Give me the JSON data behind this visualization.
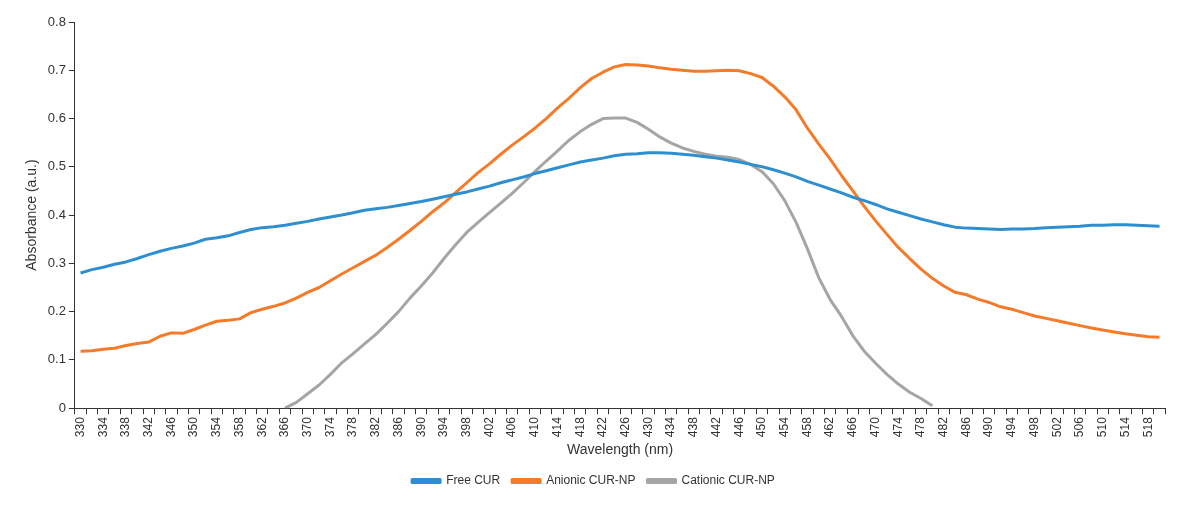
{
  "chart_data": {
    "type": "line",
    "xlabel": "Wavelength (nm)",
    "ylabel": "Absorbance (a.u.)",
    "categories": [
      "330",
      null,
      "334",
      null,
      "338",
      null,
      "342",
      null,
      "346",
      null,
      "350",
      null,
      "354",
      null,
      "358",
      null,
      "362",
      null,
      "366",
      null,
      "370",
      null,
      "374",
      null,
      "378",
      null,
      "382",
      null,
      "386",
      null,
      "390",
      null,
      "394",
      null,
      "398",
      null,
      "402",
      null,
      "406",
      null,
      "410",
      null,
      "414",
      null,
      "418",
      null,
      "422",
      null,
      "426",
      null,
      "430",
      null,
      "434",
      null,
      "438",
      null,
      "442",
      null,
      "446",
      null,
      "450",
      null,
      "454",
      null,
      "458",
      null,
      "462",
      null,
      "466",
      null,
      "470",
      null,
      "474",
      null,
      "478",
      null,
      "482",
      null,
      "486",
      null,
      "490",
      null,
      "494",
      null,
      "498",
      null,
      "502",
      null,
      "506",
      null,
      "510",
      null,
      "514",
      null,
      "518",
      null
    ],
    "series": [
      {
        "name": "Free CUR",
        "color": "#2e8fd0",
        "values": [
          0.28,
          0.287,
          0.292,
          0.298,
          0.303,
          0.31,
          0.318,
          0.325,
          0.331,
          0.336,
          0.342,
          0.35,
          0.353,
          0.357,
          0.364,
          0.37,
          0.374,
          0.376,
          0.379,
          0.383,
          0.387,
          0.392,
          0.396,
          0.4,
          0.405,
          0.41,
          0.413,
          0.416,
          0.42,
          0.424,
          0.428,
          0.433,
          0.438,
          0.443,
          0.448,
          0.454,
          0.46,
          0.467,
          0.473,
          0.479,
          0.486,
          0.492,
          0.498,
          0.504,
          0.51,
          0.514,
          0.518,
          0.523,
          0.526,
          0.527,
          0.529,
          0.529,
          0.528,
          0.526,
          0.524,
          0.521,
          0.518,
          0.514,
          0.51,
          0.505,
          0.5,
          0.494,
          0.487,
          0.479,
          0.47,
          0.462,
          0.454,
          0.446,
          0.437,
          0.43,
          0.422,
          0.413,
          0.406,
          0.399,
          0.392,
          0.386,
          0.38,
          0.375,
          0.373,
          0.372,
          0.371,
          0.37,
          0.371,
          0.371,
          0.372,
          0.374,
          0.375,
          0.376,
          0.377,
          0.379,
          0.379,
          0.38,
          0.38,
          0.379,
          0.378,
          0.377
        ]
      },
      {
        "name": "Anionic CUR-NP",
        "color": "#f47b2a",
        "values": [
          0.118,
          0.119,
          0.122,
          0.124,
          0.13,
          0.134,
          0.137,
          0.149,
          0.156,
          0.155,
          0.163,
          0.172,
          0.18,
          0.182,
          0.185,
          0.198,
          0.205,
          0.211,
          0.218,
          0.228,
          0.24,
          0.25,
          0.264,
          0.278,
          0.291,
          0.304,
          0.317,
          0.333,
          0.35,
          0.368,
          0.387,
          0.407,
          0.425,
          0.446,
          0.467,
          0.488,
          0.506,
          0.526,
          0.545,
          0.562,
          0.58,
          0.6,
          0.622,
          0.642,
          0.664,
          0.683,
          0.696,
          0.707,
          0.712,
          0.711,
          0.709,
          0.705,
          0.702,
          0.7,
          0.698,
          0.698,
          0.699,
          0.7,
          0.699,
          0.693,
          0.685,
          0.667,
          0.645,
          0.618,
          0.58,
          0.547,
          0.516,
          0.482,
          0.45,
          0.418,
          0.388,
          0.36,
          0.333,
          0.31,
          0.288,
          0.269,
          0.253,
          0.24,
          0.235,
          0.226,
          0.219,
          0.21,
          0.205,
          0.198,
          0.191,
          0.186,
          0.181,
          0.176,
          0.171,
          0.166,
          0.162,
          0.158,
          0.154,
          0.151,
          0.148,
          0.147
        ]
      },
      {
        "name": "Cationic CUR-NP",
        "color": "#a5a5a5",
        "values": [
          null,
          null,
          null,
          null,
          null,
          null,
          null,
          null,
          null,
          null,
          null,
          null,
          null,
          null,
          null,
          null,
          null,
          null,
          0,
          0.012,
          0.03,
          0.048,
          0.07,
          0.094,
          0.113,
          0.133,
          0.153,
          0.176,
          0.2,
          0.228,
          0.253,
          0.28,
          0.31,
          0.338,
          0.364,
          0.385,
          0.405,
          0.425,
          0.445,
          0.467,
          0.49,
          0.512,
          0.533,
          0.555,
          0.573,
          0.588,
          0.6,
          0.601,
          0.601,
          0.592,
          0.578,
          0.562,
          0.549,
          0.539,
          0.532,
          0.526,
          0.522,
          0.52,
          0.515,
          0.505,
          0.49,
          0.465,
          0.43,
          0.385,
          0.33,
          0.27,
          0.225,
          0.19,
          0.15,
          0.118,
          0.093,
          0.07,
          0.05,
          0.033,
          0.02,
          0.005,
          null,
          null,
          null,
          null,
          null,
          null,
          null,
          null,
          null,
          null,
          null,
          null,
          null,
          null,
          null,
          null,
          null,
          null,
          null,
          null
        ]
      }
    ],
    "ylim": [
      0,
      0.8
    ],
    "yticks": [
      0,
      0.1,
      0.2,
      0.3,
      0.4,
      0.5,
      0.6,
      0.7,
      0.8
    ],
    "grid": false,
    "legend": "bottom",
    "marker": "none",
    "line_style": "solid"
  }
}
